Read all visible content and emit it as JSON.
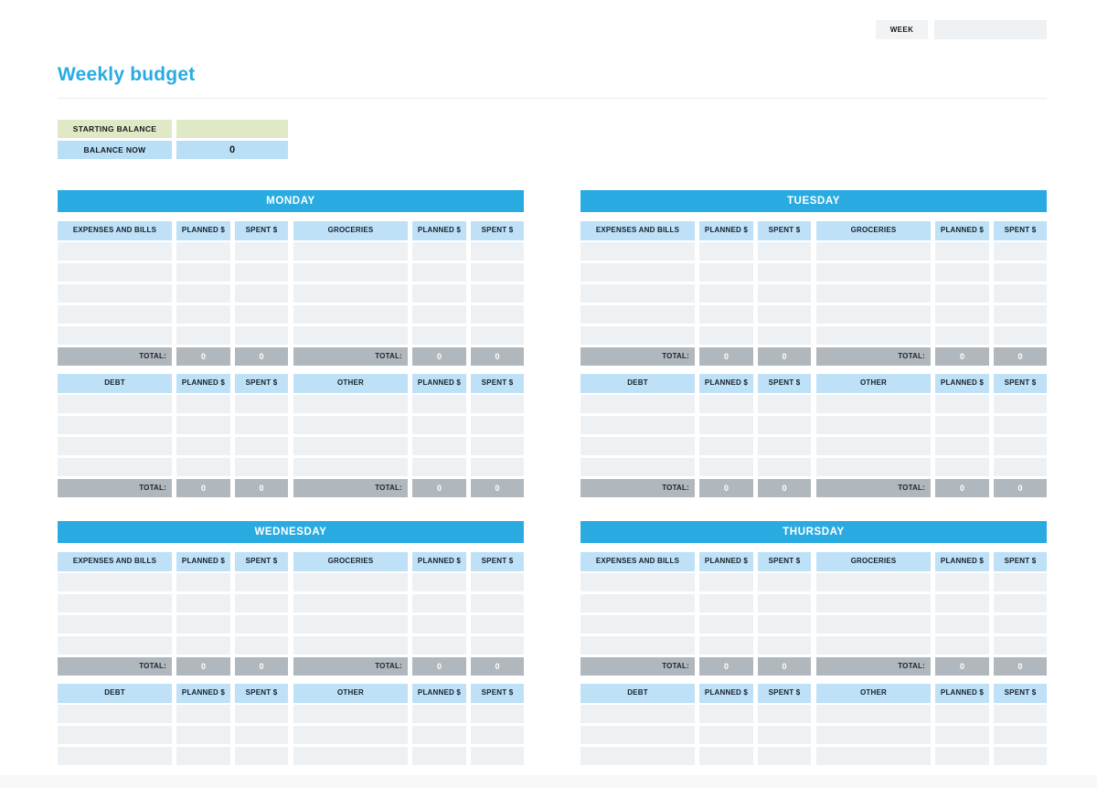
{
  "header": {
    "week_label": "WEEK",
    "week_value": "",
    "title": "Weekly budget"
  },
  "balance": {
    "starting_label": "STARTING BALANCE",
    "starting_value": "",
    "now_label": "BALANCE NOW",
    "now_value": "0"
  },
  "labels": {
    "planned": "PLANNED $",
    "spent": "SPENT $",
    "total": "TOTAL:"
  },
  "colors": {
    "accent_blue": "#29ABE2",
    "column_header_blue": "#BEE1F7",
    "balance_blue": "#B9DFF6",
    "balance_green": "#DFE9C5",
    "empty_row_gray": "#EDF1F4",
    "total_row_gray": "#B0B8BD"
  },
  "days": [
    {
      "name": "MONDAY",
      "sections": [
        {
          "left_header": "EXPENSES AND BILLS",
          "right_header": "GROCERIES",
          "rows": 5,
          "show_total": true,
          "totals": {
            "left": [
              "0",
              "0"
            ],
            "right": [
              "0",
              "0"
            ]
          }
        },
        {
          "left_header": "DEBT",
          "right_header": "OTHER",
          "rows": 4,
          "show_total": true,
          "totals": {
            "left": [
              "0",
              "0"
            ],
            "right": [
              "0",
              "0"
            ]
          }
        }
      ]
    },
    {
      "name": "TUESDAY",
      "sections": [
        {
          "left_header": "EXPENSES AND BILLS",
          "right_header": "GROCERIES",
          "rows": 5,
          "show_total": true,
          "totals": {
            "left": [
              "0",
              "0"
            ],
            "right": [
              "0",
              "0"
            ]
          }
        },
        {
          "left_header": "DEBT",
          "right_header": "OTHER",
          "rows": 4,
          "show_total": true,
          "totals": {
            "left": [
              "0",
              "0"
            ],
            "right": [
              "0",
              "0"
            ]
          }
        }
      ]
    },
    {
      "name": "WEDNESDAY",
      "sections": [
        {
          "left_header": "EXPENSES AND BILLS",
          "right_header": "GROCERIES",
          "rows": 4,
          "show_total": true,
          "totals": {
            "left": [
              "0",
              "0"
            ],
            "right": [
              "0",
              "0"
            ]
          }
        },
        {
          "left_header": "DEBT",
          "right_header": "OTHER",
          "rows": 3,
          "show_total": false
        }
      ]
    },
    {
      "name": "THURSDAY",
      "sections": [
        {
          "left_header": "EXPENSES AND BILLS",
          "right_header": "GROCERIES",
          "rows": 4,
          "show_total": true,
          "totals": {
            "left": [
              "0",
              "0"
            ],
            "right": [
              "0",
              "0"
            ]
          }
        },
        {
          "left_header": "DEBT",
          "right_header": "OTHER",
          "rows": 3,
          "show_total": false
        }
      ]
    }
  ]
}
